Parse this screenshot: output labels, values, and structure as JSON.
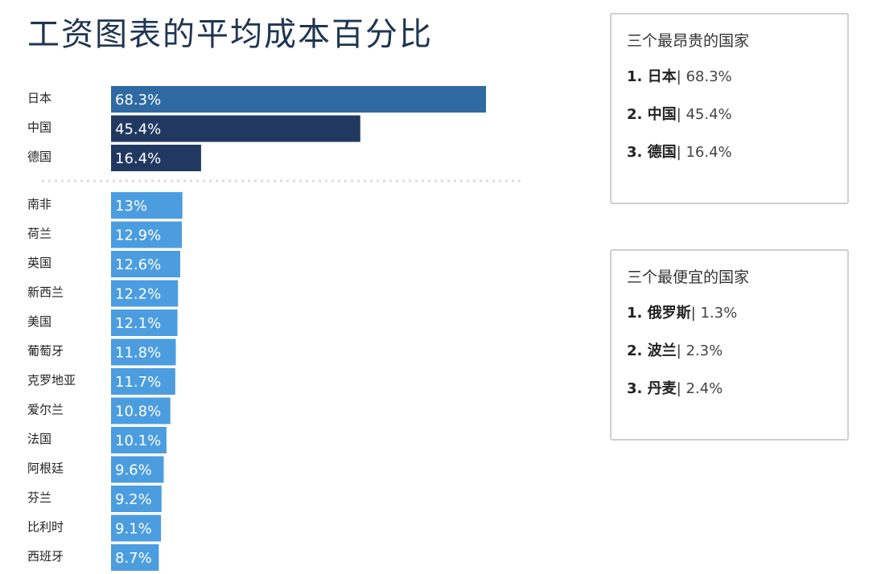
{
  "title": "工资图表的平均成本百分比",
  "colors": {
    "top": "#2f6aa3",
    "dark": "#213961",
    "light": "#4b9ddf",
    "divider": "#dcdcdc"
  },
  "chart_data": {
    "type": "bar",
    "orientation": "horizontal",
    "title": "工资图表的平均成本百分比",
    "categories": [
      "日本",
      "中国",
      "德国",
      "南非",
      "荷兰",
      "英国",
      "新西兰",
      "美国",
      "葡萄牙",
      "克罗地亚",
      "爱尔兰",
      "法国",
      "阿根廷",
      "芬兰",
      "比利时",
      "西班牙"
    ],
    "values": [
      68.3,
      45.4,
      16.4,
      13,
      12.9,
      12.6,
      12.2,
      12.1,
      11.8,
      11.7,
      10.8,
      10.1,
      9.6,
      9.2,
      9.1,
      8.7
    ],
    "value_labels": [
      "68.3%",
      "45.4%",
      "16.4%",
      "13%",
      "12.9%",
      "12.6%",
      "12.2%",
      "12.1%",
      "11.8%",
      "11.7%",
      "10.8%",
      "10.1%",
      "9.6%",
      "9.2%",
      "9.1%",
      "8.7%"
    ],
    "highlight_group": [
      "日本",
      "中国",
      "德国"
    ],
    "divider_after_index": 2,
    "grid": false,
    "legend": "none"
  },
  "panels": {
    "expensive": {
      "title": "三个最昂贵的国家",
      "items": [
        {
          "name": "1. 日本",
          "value": "68.3%"
        },
        {
          "name": "2. 中国",
          "value": "45.4%"
        },
        {
          "name": "3. 德国",
          "value": "16.4%"
        }
      ]
    },
    "cheapest": {
      "title": "三个最便宜的国家",
      "items": [
        {
          "name": "1. 俄罗斯",
          "value": "1.3%"
        },
        {
          "name": "2. 波兰",
          "value": "2.3%"
        },
        {
          "name": "3. 丹麦",
          "value": "2.4%"
        }
      ]
    }
  }
}
